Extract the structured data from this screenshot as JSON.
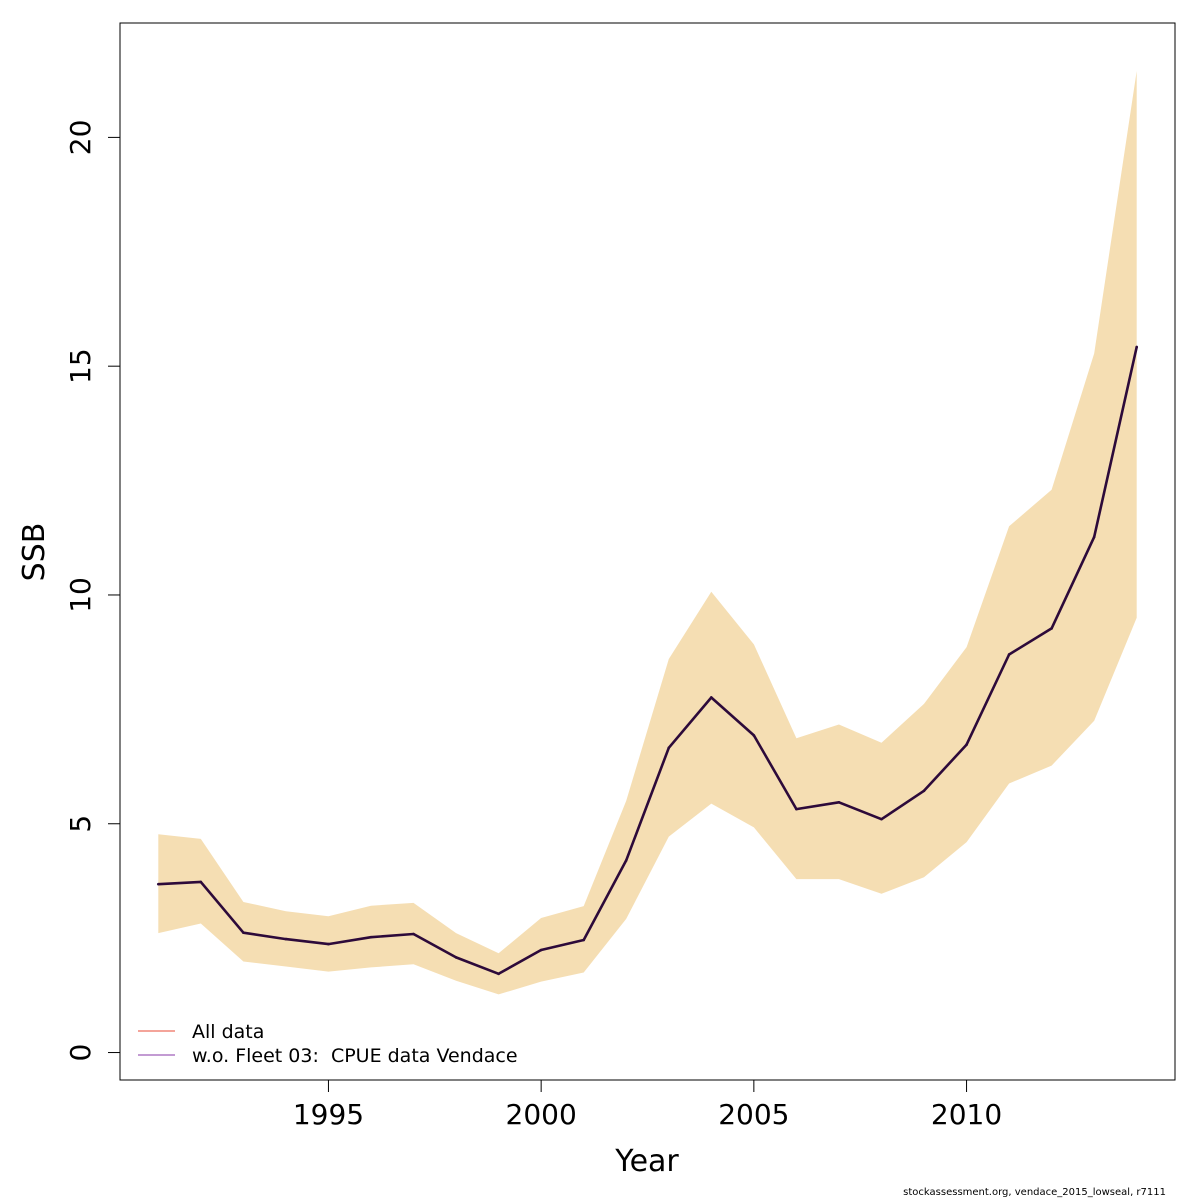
{
  "chart_data": {
    "type": "line",
    "title": "",
    "xlabel": "Year",
    "ylabel": "SSB",
    "xlim": [
      1990.1,
      2014.9
    ],
    "ylim": [
      -0.6,
      22.5
    ],
    "x_ticks": [
      1995,
      2000,
      2005,
      2010
    ],
    "y_ticks": [
      0,
      5,
      10,
      15,
      20
    ],
    "grid": false,
    "legend_position": "bottom-left",
    "legend": [
      {
        "label": "All data",
        "color": "#F4A49A"
      },
      {
        "label": "w.o. Fleet 03:  CPUE data Vendace",
        "color": "#C39BD3"
      }
    ],
    "band_color": "#F5DEB3",
    "line_color": "#2D0A3A",
    "series": [
      {
        "x": [
          1991,
          1992,
          1993,
          1994,
          1995,
          1996,
          1997,
          1998,
          1999,
          2000,
          2001,
          2002,
          2003,
          2004,
          2005,
          2006,
          2007,
          2008,
          2009,
          2010,
          2011,
          2012,
          2013,
          2014
        ],
        "values": [
          3.68,
          3.73,
          2.62,
          2.48,
          2.37,
          2.52,
          2.59,
          2.08,
          1.72,
          2.24,
          2.46,
          4.2,
          6.66,
          7.76,
          6.93,
          5.32,
          5.47,
          5.1,
          5.72,
          6.73,
          8.7,
          9.27,
          11.27,
          15.42
        ],
        "lower": [
          2.61,
          2.82,
          1.99,
          1.88,
          1.77,
          1.86,
          1.93,
          1.57,
          1.27,
          1.55,
          1.75,
          2.92,
          4.72,
          5.44,
          4.92,
          3.79,
          3.79,
          3.47,
          3.83,
          4.6,
          5.88,
          6.27,
          7.25,
          9.5
        ],
        "upper": [
          4.77,
          4.67,
          3.29,
          3.09,
          2.98,
          3.21,
          3.27,
          2.61,
          2.17,
          2.94,
          3.2,
          5.5,
          8.6,
          10.07,
          8.92,
          6.87,
          7.17,
          6.77,
          7.62,
          8.86,
          11.5,
          12.3,
          15.28,
          21.45
        ]
      }
    ]
  },
  "footer": "stockassessment.org, vendace_2015_lowseal, r7111"
}
